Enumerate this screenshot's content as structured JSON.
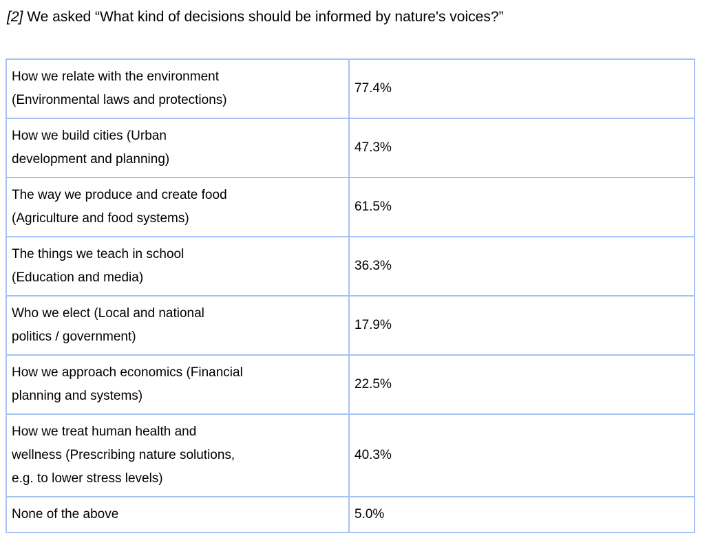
{
  "title": {
    "prefix": "[2]",
    "text": " We asked “What kind of decisions should be informed by nature's voices?”"
  },
  "colors": {
    "table_border": "#a4c2f4",
    "text": "#000000"
  },
  "table": {
    "rows": [
      {
        "label": "How we relate with the environment\n(Environmental laws and protections)",
        "value": "77.4%"
      },
      {
        "label": "How we build cities (Urban\ndevelopment and planning)",
        "value": "47.3%"
      },
      {
        "label": "The way we produce and create food\n(Agriculture and food systems)",
        "value": "61.5%"
      },
      {
        "label": "The things we teach in school\n(Education and media)",
        "value": "36.3%"
      },
      {
        "label": "Who we elect (Local and national\npolitics / government)",
        "value": "17.9%"
      },
      {
        "label": "How we approach economics (Financial\nplanning and systems)",
        "value": "22.5%"
      },
      {
        "label": "How we treat human health and\nwellness (Prescribing nature solutions,\ne.g. to lower stress levels)",
        "value": "40.3%"
      },
      {
        "label": "None of the above",
        "value": "5.0%"
      }
    ]
  }
}
